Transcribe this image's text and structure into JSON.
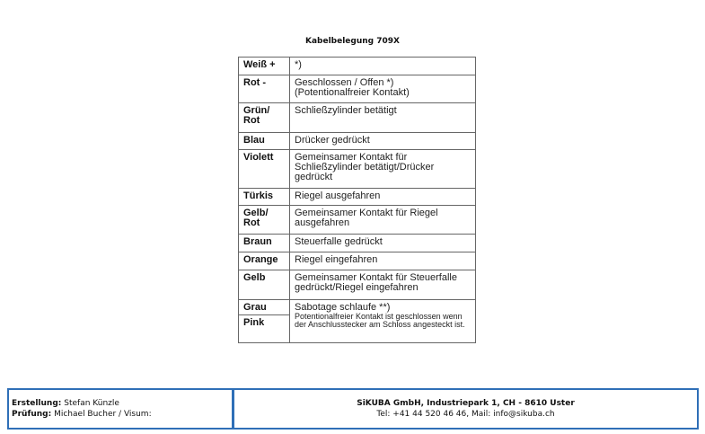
{
  "title": "Kabelbelegung 709X",
  "rows": [
    {
      "color": "Weiß +",
      "desc": "*)"
    },
    {
      "color": "Rot -",
      "desc": "Geschlossen / Offen  *)",
      "desc2": "(Potentionalfreier Kontakt)"
    },
    {
      "color": "Grün/ Rot",
      "desc": "Schließzylinder betätigt"
    },
    {
      "color": "Blau",
      "desc": "Drücker gedrückt"
    },
    {
      "color": "Violett",
      "desc": "Gemeinsamer Kontakt für Schließzylinder betätigt/Drücker gedrückt"
    },
    {
      "color": "Türkis",
      "desc": "Riegel ausgefahren"
    },
    {
      "color": "Gelb/ Rot",
      "desc": "Gemeinsamer Kontakt für Riegel ausgefahren"
    },
    {
      "color": "Braun",
      "desc": "Steuerfalle gedrückt"
    },
    {
      "color": "Orange",
      "desc": "Riegel eingefahren"
    },
    {
      "color": "Gelb",
      "desc": "Gemeinsamer Kontakt für Steuerfalle gedrückt/Riegel eingefahren"
    },
    {
      "color": "Grau",
      "desc": "Sabotage schlaufe **)",
      "note": "Potentionalfreier Kontakt ist geschlossen wenn der Anschlusstecker am Schloss angesteckt ist."
    },
    {
      "color": "Pink"
    }
  ],
  "footer": {
    "creation_label": "Erstellung:",
    "creation_value": "Stefan Künzle",
    "review_label": "Prüfung:",
    "review_value": "Michael Bucher / Visum:",
    "company": "SiKUBA GmbH, Industriepark 1, CH - 8610 Uster",
    "contact": "Tel: +41 44 520 46 46, Mail: info@sikuba.ch"
  },
  "colors": {
    "border": "#2f6fb7"
  }
}
